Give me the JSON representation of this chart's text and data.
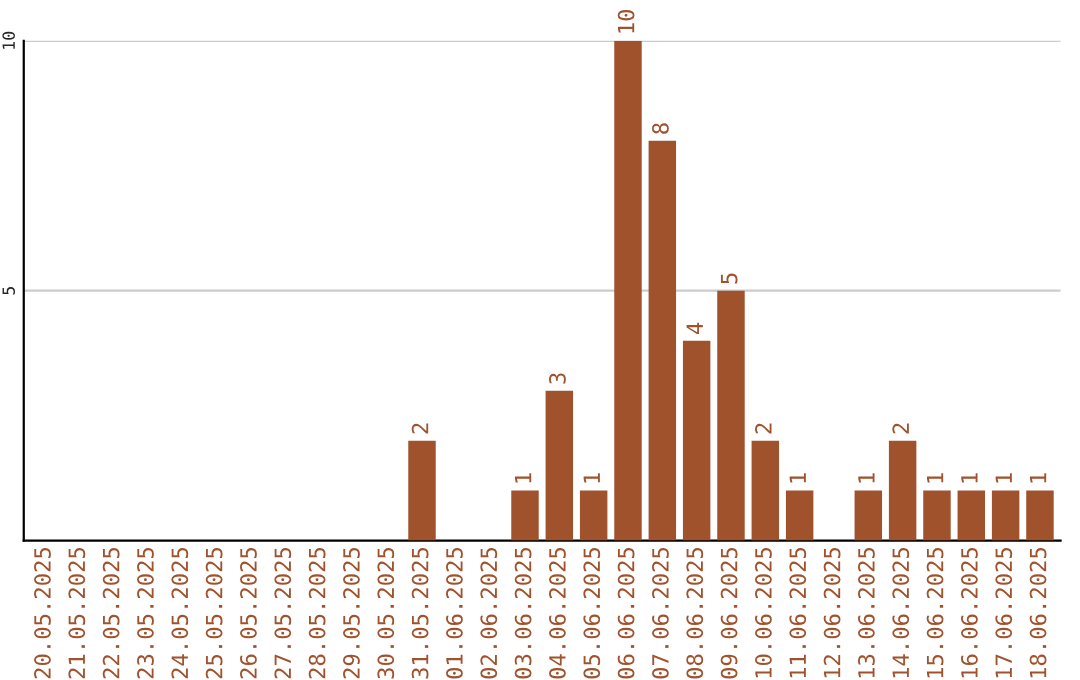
{
  "chart_data": {
    "type": "bar",
    "categories": [
      "20.05.2025",
      "21.05.2025",
      "22.05.2025",
      "23.05.2025",
      "24.05.2025",
      "25.05.2025",
      "26.05.2025",
      "27.05.2025",
      "28.05.2025",
      "29.05.2025",
      "30.05.2025",
      "31.05.2025",
      "01.06.2025",
      "02.06.2025",
      "03.06.2025",
      "04.06.2025",
      "05.06.2025",
      "06.06.2025",
      "07.06.2025",
      "08.06.2025",
      "09.06.2025",
      "10.06.2025",
      "11.06.2025",
      "12.06.2025",
      "13.06.2025",
      "14.06.2025",
      "15.06.2025",
      "16.06.2025",
      "17.06.2025",
      "18.06.2025"
    ],
    "values": [
      null,
      null,
      null,
      null,
      null,
      null,
      null,
      null,
      null,
      null,
      null,
      2,
      null,
      null,
      1,
      3,
      1,
      10,
      8,
      4,
      5,
      2,
      1,
      null,
      1,
      2,
      1,
      1,
      1,
      1
    ],
    "value_labels": [
      null,
      null,
      null,
      null,
      null,
      null,
      null,
      null,
      null,
      null,
      null,
      "2",
      null,
      null,
      "1",
      "3",
      "1",
      "10",
      "8",
      "4",
      "5",
      "2",
      "1",
      null,
      "1",
      "2",
      "1",
      "1",
      "1",
      "1"
    ],
    "color": "#a0522d",
    "ylim": [
      0,
      10
    ],
    "yticks": [
      5,
      10
    ],
    "grid": "y"
  }
}
